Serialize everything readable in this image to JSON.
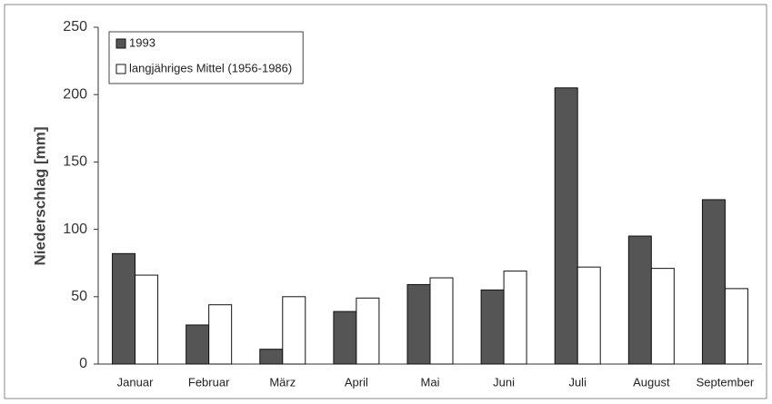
{
  "chart_data": {
    "type": "bar",
    "ylabel": "Niederschlag [mm]",
    "categories": [
      "Januar",
      "Februar",
      "März",
      "April",
      "Mai",
      "Juni",
      "Juli",
      "August",
      "September"
    ],
    "series": [
      {
        "name": "1993",
        "color": "#555555",
        "values": [
          82,
          29,
          11,
          39,
          59,
          55,
          205,
          95,
          122
        ]
      },
      {
        "name": "langjähriges Mittel (1956-1986)",
        "color": "#ffffff",
        "values": [
          66,
          44,
          50,
          49,
          64,
          69,
          72,
          71,
          56
        ]
      }
    ],
    "ylim": [
      0,
      250
    ],
    "yticks": [
      0,
      50,
      100,
      150,
      200,
      250
    ],
    "legend": "top-left"
  }
}
